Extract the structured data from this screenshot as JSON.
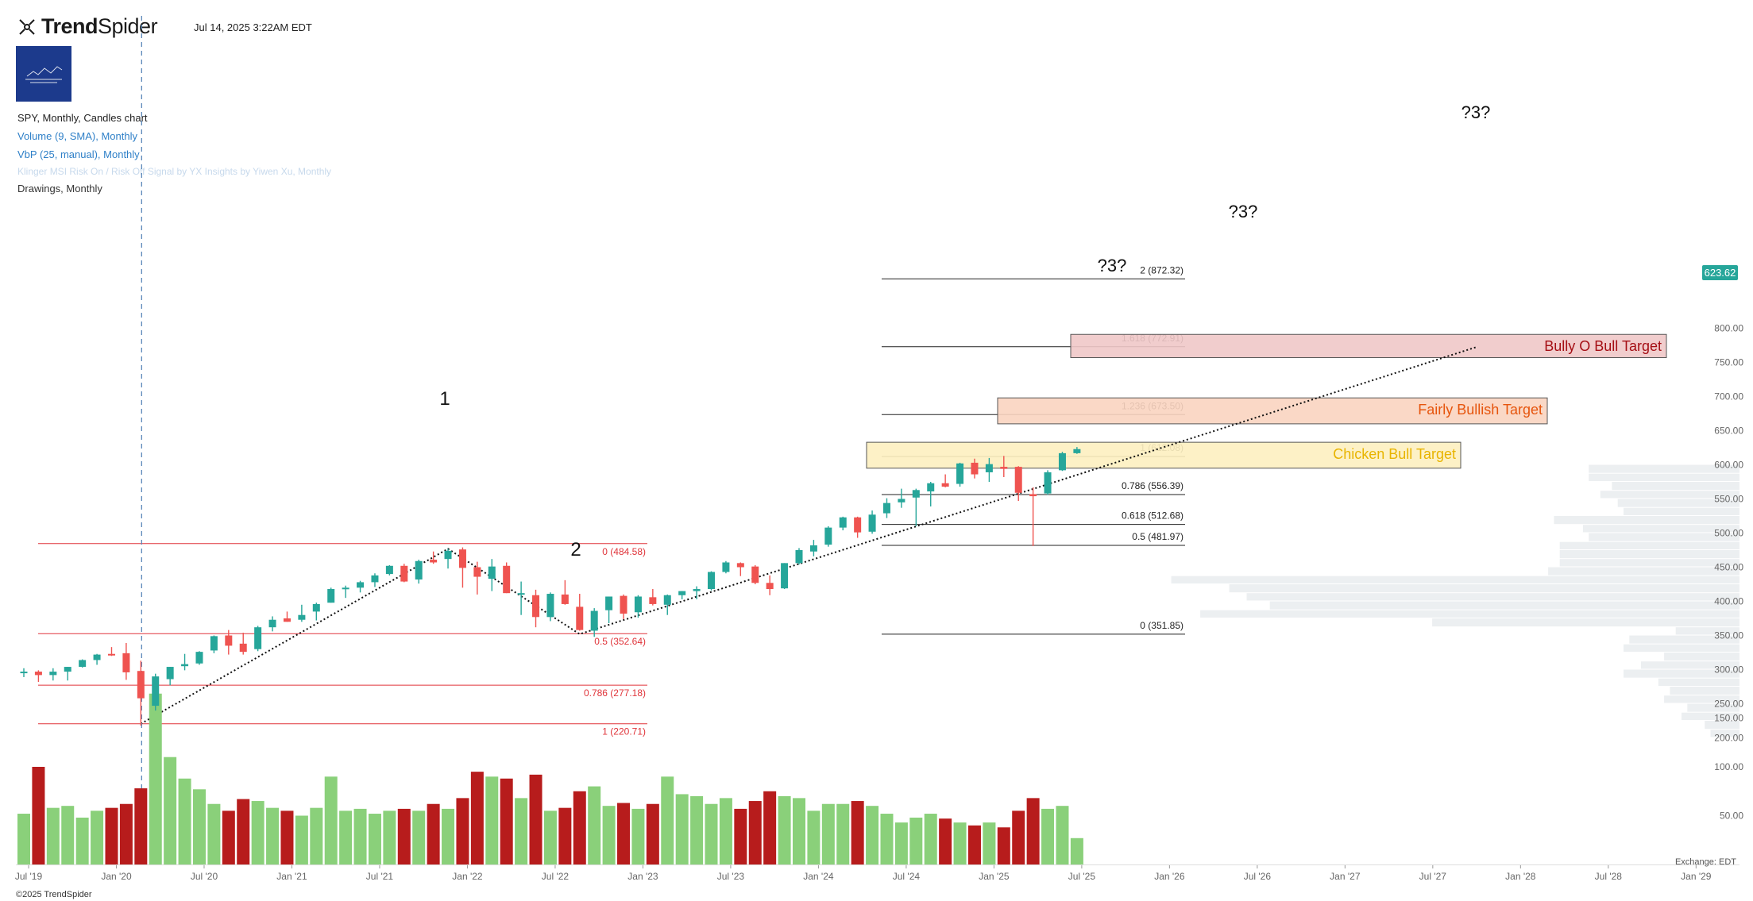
{
  "header": {
    "brand_prefix": "Trend",
    "brand_suffix": "Spider",
    "datetime": "Jul 14, 2025 3:22AM EDT"
  },
  "legend": {
    "line1": "SPY, Monthly, Candles chart",
    "line2": "Volume (9, SMA), Monthly",
    "line3": "VbP (25, manual), Monthly",
    "line4": "Klinger MSI Risk On / Risk Off Signal by YX Insights by Yiwen Xu, Monthly",
    "line5": "Drawings, Monthly"
  },
  "footer": {
    "copyright": "©2025 TrendSpider",
    "exchange": "Exchange: EDT"
  },
  "colors": {
    "up": "#26a69a",
    "down": "#ef5350",
    "volume_up": "#8ad07a",
    "volume_down": "#b71c1c",
    "fib_red": "#e0343a",
    "grid_text": "#666666",
    "vbp": "#eceff1"
  },
  "chart_data": {
    "type": "candlestick",
    "symbol": "SPY",
    "timeframe": "Monthly",
    "last_price": "623.62",
    "y_axis": {
      "range": [
        200,
        800
      ],
      "ticks": [
        "200.00",
        "250.00",
        "300.00",
        "350.00",
        "400.00",
        "450.00",
        "500.00",
        "550.00",
        "600.00",
        "650.00",
        "700.00",
        "750.00",
        "800.00"
      ]
    },
    "x_axis": {
      "ticks": [
        "Jul '19",
        "Jan '20",
        "Jul '20",
        "Jan '21",
        "Jul '21",
        "Jan '22",
        "Jul '22",
        "Jan '23",
        "Jul '23",
        "Jan '24",
        "Jul '24",
        "Jan '25",
        "Jul '25",
        "Jan '26",
        "Jul '26",
        "Jan '27",
        "Jul '27",
        "Jan '28",
        "Jul '28",
        "Jan '29"
      ]
    },
    "volume_axis": {
      "ticks": [
        "50.00",
        "100.00",
        "150.00"
      ]
    },
    "candles": [
      {
        "date": "2019-07",
        "o": 296,
        "h": 302,
        "l": 289,
        "c": 297
      },
      {
        "date": "2019-08",
        "o": 297,
        "h": 299,
        "l": 282,
        "c": 292
      },
      {
        "date": "2019-09",
        "o": 292,
        "h": 302,
        "l": 284,
        "c": 297
      },
      {
        "date": "2019-10",
        "o": 297,
        "h": 304,
        "l": 284,
        "c": 304
      },
      {
        "date": "2019-11",
        "o": 304,
        "h": 315,
        "l": 303,
        "c": 314
      },
      {
        "date": "2019-12",
        "o": 314,
        "h": 323,
        "l": 307,
        "c": 322
      },
      {
        "date": "2020-01",
        "o": 323,
        "h": 333,
        "l": 320,
        "c": 322
      },
      {
        "date": "2020-02",
        "o": 324,
        "h": 339,
        "l": 285,
        "c": 296
      },
      {
        "date": "2020-03",
        "o": 298,
        "h": 313,
        "l": 218,
        "c": 258
      },
      {
        "date": "2020-04",
        "o": 247,
        "h": 294,
        "l": 240,
        "c": 290
      },
      {
        "date": "2020-05",
        "o": 286,
        "h": 304,
        "l": 277,
        "c": 304
      },
      {
        "date": "2020-06",
        "o": 305,
        "h": 323,
        "l": 299,
        "c": 308
      },
      {
        "date": "2020-07",
        "o": 309,
        "h": 327,
        "l": 307,
        "c": 326
      },
      {
        "date": "2020-08",
        "o": 328,
        "h": 350,
        "l": 324,
        "c": 349
      },
      {
        "date": "2020-09",
        "o": 350,
        "h": 358,
        "l": 322,
        "c": 335
      },
      {
        "date": "2020-10",
        "o": 338,
        "h": 354,
        "l": 322,
        "c": 326
      },
      {
        "date": "2020-11",
        "o": 330,
        "h": 364,
        "l": 327,
        "c": 362
      },
      {
        "date": "2020-12",
        "o": 362,
        "h": 378,
        "l": 356,
        "c": 373
      },
      {
        "date": "2021-01",
        "o": 375,
        "h": 385,
        "l": 370,
        "c": 370
      },
      {
        "date": "2021-02",
        "o": 373,
        "h": 395,
        "l": 370,
        "c": 380
      },
      {
        "date": "2021-03",
        "o": 385,
        "h": 398,
        "l": 372,
        "c": 396
      },
      {
        "date": "2021-04",
        "o": 398,
        "h": 420,
        "l": 398,
        "c": 418
      },
      {
        "date": "2021-05",
        "o": 419,
        "h": 423,
        "l": 405,
        "c": 420
      },
      {
        "date": "2021-06",
        "o": 420,
        "h": 430,
        "l": 413,
        "c": 428
      },
      {
        "date": "2021-07",
        "o": 428,
        "h": 441,
        "l": 421,
        "c": 438
      },
      {
        "date": "2021-08",
        "o": 440,
        "h": 453,
        "l": 438,
        "c": 452
      },
      {
        "date": "2021-09",
        "o": 452,
        "h": 455,
        "l": 428,
        "c": 429
      },
      {
        "date": "2021-10",
        "o": 432,
        "h": 461,
        "l": 426,
        "c": 459
      },
      {
        "date": "2021-11",
        "o": 461,
        "h": 473,
        "l": 455,
        "c": 457
      },
      {
        "date": "2021-12",
        "o": 462,
        "h": 477,
        "l": 448,
        "c": 474
      },
      {
        "date": "2022-01",
        "o": 476,
        "h": 479,
        "l": 420,
        "c": 449
      },
      {
        "date": "2022-02",
        "o": 450,
        "h": 458,
        "l": 410,
        "c": 436
      },
      {
        "date": "2022-03",
        "o": 433,
        "h": 462,
        "l": 415,
        "c": 451
      },
      {
        "date": "2022-04",
        "o": 452,
        "h": 457,
        "l": 412,
        "c": 412
      },
      {
        "date": "2022-05",
        "o": 411,
        "h": 429,
        "l": 380,
        "c": 412
      },
      {
        "date": "2022-06",
        "o": 409,
        "h": 417,
        "l": 362,
        "c": 377
      },
      {
        "date": "2022-07",
        "o": 377,
        "h": 413,
        "l": 371,
        "c": 411
      },
      {
        "date": "2022-08",
        "o": 410,
        "h": 431,
        "l": 395,
        "c": 396
      },
      {
        "date": "2022-09",
        "o": 392,
        "h": 411,
        "l": 357,
        "c": 358
      },
      {
        "date": "2022-10",
        "o": 357,
        "h": 390,
        "l": 348,
        "c": 386
      },
      {
        "date": "2022-11",
        "o": 387,
        "h": 407,
        "l": 368,
        "c": 407
      },
      {
        "date": "2022-12",
        "o": 408,
        "h": 410,
        "l": 374,
        "c": 382
      },
      {
        "date": "2023-01",
        "o": 384,
        "h": 409,
        "l": 376,
        "c": 407
      },
      {
        "date": "2023-02",
        "o": 406,
        "h": 418,
        "l": 394,
        "c": 396
      },
      {
        "date": "2023-03",
        "o": 395,
        "h": 410,
        "l": 380,
        "c": 409
      },
      {
        "date": "2023-04",
        "o": 409,
        "h": 415,
        "l": 403,
        "c": 415
      },
      {
        "date": "2023-05",
        "o": 415,
        "h": 422,
        "l": 403,
        "c": 418
      },
      {
        "date": "2023-06",
        "o": 418,
        "h": 444,
        "l": 416,
        "c": 443
      },
      {
        "date": "2023-07",
        "o": 443,
        "h": 459,
        "l": 441,
        "c": 457
      },
      {
        "date": "2023-08",
        "o": 456,
        "h": 457,
        "l": 437,
        "c": 450
      },
      {
        "date": "2023-09",
        "o": 451,
        "h": 453,
        "l": 425,
        "c": 427
      },
      {
        "date": "2023-10",
        "o": 427,
        "h": 438,
        "l": 409,
        "c": 418
      },
      {
        "date": "2023-11",
        "o": 419,
        "h": 456,
        "l": 418,
        "c": 456
      },
      {
        "date": "2023-12",
        "o": 456,
        "h": 478,
        "l": 454,
        "c": 475
      },
      {
        "date": "2024-01",
        "o": 473,
        "h": 490,
        "l": 466,
        "c": 482
      },
      {
        "date": "2024-02",
        "o": 483,
        "h": 510,
        "l": 480,
        "c": 508
      },
      {
        "date": "2024-03",
        "o": 508,
        "h": 524,
        "l": 504,
        "c": 523
      },
      {
        "date": "2024-04",
        "o": 523,
        "h": 524,
        "l": 493,
        "c": 501
      },
      {
        "date": "2024-05",
        "o": 502,
        "h": 533,
        "l": 499,
        "c": 527
      },
      {
        "date": "2024-06",
        "o": 529,
        "h": 551,
        "l": 522,
        "c": 544
      },
      {
        "date": "2024-07",
        "o": 545,
        "h": 565,
        "l": 537,
        "c": 550
      },
      {
        "date": "2024-08",
        "o": 552,
        "h": 565,
        "l": 510,
        "c": 563
      },
      {
        "date": "2024-09",
        "o": 561,
        "h": 575,
        "l": 539,
        "c": 573
      },
      {
        "date": "2024-10",
        "o": 573,
        "h": 586,
        "l": 567,
        "c": 568
      },
      {
        "date": "2024-11",
        "o": 572,
        "h": 603,
        "l": 568,
        "c": 602
      },
      {
        "date": "2024-12",
        "o": 603,
        "h": 609,
        "l": 580,
        "c": 586
      },
      {
        "date": "2025-01",
        "o": 589,
        "h": 610,
        "l": 575,
        "c": 601
      },
      {
        "date": "2025-02",
        "o": 597,
        "h": 613,
        "l": 582,
        "c": 594
      },
      {
        "date": "2025-03",
        "o": 597,
        "h": 598,
        "l": 547,
        "c": 559
      },
      {
        "date": "2025-04",
        "o": 557,
        "h": 567,
        "l": 481,
        "c": 554
      },
      {
        "date": "2025-05",
        "o": 558,
        "h": 592,
        "l": 556,
        "c": 589
      },
      {
        "date": "2025-06",
        "o": 592,
        "h": 619,
        "l": 591,
        "c": 617
      },
      {
        "date": "2025-07",
        "o": 617,
        "h": 626,
        "l": 616,
        "c": 623
      }
    ],
    "volume": [
      52,
      100,
      58,
      60,
      48,
      55,
      58,
      62,
      78,
      175,
      110,
      88,
      77,
      62,
      55,
      67,
      65,
      58,
      55,
      50,
      58,
      90,
      55,
      57,
      52,
      55,
      57,
      55,
      62,
      57,
      68,
      95,
      90,
      88,
      68,
      92,
      55,
      58,
      75,
      80,
      60,
      63,
      57,
      62,
      90,
      72,
      70,
      62,
      68,
      57,
      65,
      75,
      70,
      68,
      55,
      62,
      62,
      65,
      60,
      52,
      43,
      48,
      52,
      47,
      43,
      40,
      43,
      38,
      55,
      68,
      57,
      60,
      27
    ],
    "volume_units": "millions",
    "fib_left": [
      {
        "value": "484.58",
        "label": "0 (484.58)"
      },
      {
        "value": "352.64",
        "label": "0.5 (352.64)"
      },
      {
        "value": "277.18",
        "label": "0.786 (277.18)"
      },
      {
        "value": "220.71",
        "label": "1 (220.71)"
      }
    ],
    "fib_right": [
      {
        "value": "872.32",
        "label": "2 (872.32)"
      },
      {
        "value": "772.91",
        "label": "1.618 (772.91)"
      },
      {
        "value": "673.50",
        "label": "1.236 (673.50)"
      },
      {
        "value": "612.08",
        "label": "1 (612.08)"
      },
      {
        "value": "556.39",
        "label": "0.786 (556.39)"
      },
      {
        "value": "512.68",
        "label": "0.618 (512.68)"
      },
      {
        "value": "481.97",
        "label": "0.5 (481.97)"
      },
      {
        "value": "351.85",
        "label": "0 (351.85)"
      }
    ],
    "wave_labels": [
      "1",
      "2"
    ],
    "question_labels": [
      "?3?",
      "?3?",
      "?3?"
    ],
    "targets": [
      {
        "label": "Chicken Bull Target",
        "low": 595,
        "high": 633,
        "fill": "#fdf0c0",
        "text_color": "#e8b400"
      },
      {
        "label": "Fairly Bullish Target",
        "low": 660,
        "high": 698,
        "fill": "#f9d4c0",
        "text_color": "#e6550d"
      },
      {
        "label": "Bully O Bull Target",
        "low": 757,
        "high": 791,
        "fill": "#f0c8c8",
        "text_color": "#a50f15"
      }
    ],
    "volume_by_price": [
      {
        "low": 200,
        "high": 212,
        "len": 0.05
      },
      {
        "low": 212,
        "high": 225,
        "len": 0.06
      },
      {
        "low": 225,
        "high": 237,
        "len": 0.1
      },
      {
        "low": 237,
        "high": 250,
        "len": 0.09
      },
      {
        "low": 250,
        "high": 262,
        "len": 0.13
      },
      {
        "low": 262,
        "high": 275,
        "len": 0.12
      },
      {
        "low": 275,
        "high": 287,
        "len": 0.14
      },
      {
        "low": 287,
        "high": 300,
        "len": 0.2
      },
      {
        "low": 300,
        "high": 312,
        "len": 0.17
      },
      {
        "low": 312,
        "high": 325,
        "len": 0.13
      },
      {
        "low": 325,
        "high": 337,
        "len": 0.2
      },
      {
        "low": 337,
        "high": 350,
        "len": 0.19
      },
      {
        "low": 350,
        "high": 362,
        "len": 0.11
      },
      {
        "low": 362,
        "high": 375,
        "len": 0.53
      },
      {
        "low": 375,
        "high": 387,
        "len": 0.93
      },
      {
        "low": 387,
        "high": 400,
        "len": 0.81
      },
      {
        "low": 400,
        "high": 412,
        "len": 0.85
      },
      {
        "low": 412,
        "high": 425,
        "len": 0.88
      },
      {
        "low": 425,
        "high": 437,
        "len": 0.98
      },
      {
        "low": 437,
        "high": 450,
        "len": 0.33
      },
      {
        "low": 450,
        "high": 462,
        "len": 0.31
      },
      {
        "low": 462,
        "high": 475,
        "len": 0.31
      },
      {
        "low": 475,
        "high": 487,
        "len": 0.31
      },
      {
        "low": 487,
        "high": 500,
        "len": 0.26
      },
      {
        "low": 500,
        "high": 512,
        "len": 0.27
      },
      {
        "low": 512,
        "high": 525,
        "len": 0.32
      },
      {
        "low": 525,
        "high": 537,
        "len": 0.2
      },
      {
        "low": 537,
        "high": 550,
        "len": 0.21
      },
      {
        "low": 550,
        "high": 562,
        "len": 0.24
      },
      {
        "low": 562,
        "high": 575,
        "len": 0.22
      },
      {
        "low": 575,
        "high": 587,
        "len": 0.26
      },
      {
        "low": 587,
        "high": 600,
        "len": 0.26
      }
    ]
  }
}
